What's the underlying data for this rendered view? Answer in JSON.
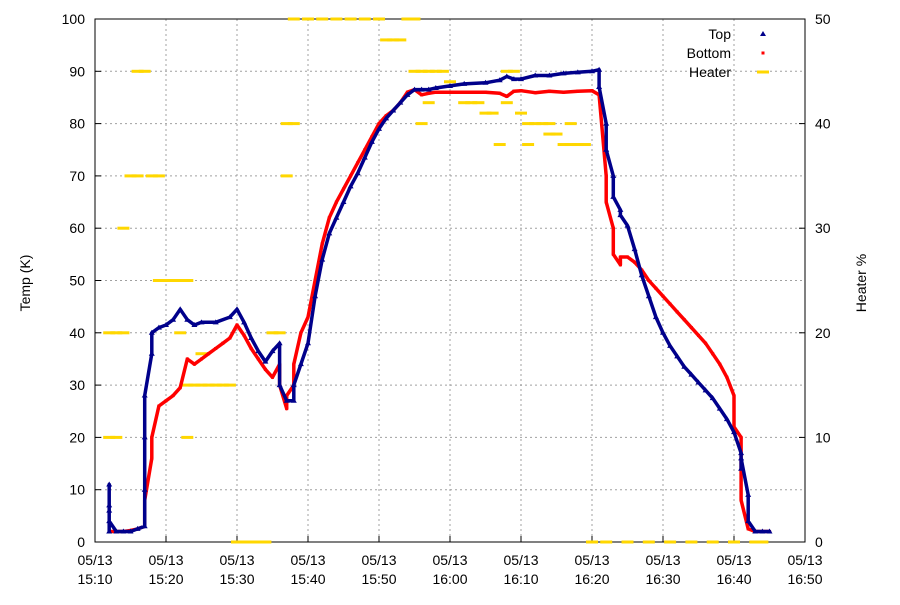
{
  "chart_data": {
    "type": "scatter",
    "xlabel": "",
    "ylabel": "Temp (K)",
    "y2label": "Heater %",
    "xlim": [
      "15:10",
      "16:50"
    ],
    "ylim": [
      0,
      100
    ],
    "y2lim": [
      0,
      50
    ],
    "x_ticks": [
      {
        "time": "15:10",
        "date": "05/13"
      },
      {
        "time": "15:20",
        "date": "05/13"
      },
      {
        "time": "15:30",
        "date": "05/13"
      },
      {
        "time": "15:40",
        "date": "05/13"
      },
      {
        "time": "15:50",
        "date": "05/13"
      },
      {
        "time": "16:00",
        "date": "05/13"
      },
      {
        "time": "16:10",
        "date": "05/13"
      },
      {
        "time": "16:20",
        "date": "05/13"
      },
      {
        "time": "16:30",
        "date": "05/13"
      },
      {
        "time": "16:40",
        "date": "05/13"
      },
      {
        "time": "16:50",
        "date": "05/13"
      }
    ],
    "y_ticks": [
      "0",
      "10",
      "20",
      "30",
      "40",
      "50",
      "60",
      "70",
      "80",
      "90",
      "100"
    ],
    "y2_ticks": [
      "0",
      "10",
      "20",
      "30",
      "40",
      "50"
    ],
    "grid": true,
    "legend_position": "top-right",
    "series": [
      {
        "name": "Top",
        "axis": "left",
        "color": "#00008b",
        "marker": "triangle",
        "points": [
          [
            "15:12",
            2
          ],
          [
            "15:12",
            6
          ],
          [
            "15:12",
            11
          ],
          [
            "15:12",
            7
          ],
          [
            "15:12",
            4
          ],
          [
            "15:13",
            2
          ],
          [
            "15:14",
            2
          ],
          [
            "15:15",
            2
          ],
          [
            "15:16",
            2.5
          ],
          [
            "15:17",
            3
          ],
          [
            "15:17",
            10
          ],
          [
            "15:17",
            20
          ],
          [
            "15:17",
            28
          ],
          [
            "15:18",
            36
          ],
          [
            "15:18",
            40
          ],
          [
            "15:19",
            41
          ],
          [
            "15:20",
            41.5
          ],
          [
            "15:21",
            42.5
          ],
          [
            "15:22",
            44.5
          ],
          [
            "15:23",
            42.5
          ],
          [
            "15:24",
            41.5
          ],
          [
            "15:25",
            42
          ],
          [
            "15:27",
            42
          ],
          [
            "15:29",
            43
          ],
          [
            "15:30",
            44.5
          ],
          [
            "15:31",
            42
          ],
          [
            "15:32",
            39
          ],
          [
            "15:33",
            36.5
          ],
          [
            "15:34",
            34.5
          ],
          [
            "15:35",
            36.5
          ],
          [
            "15:36",
            38
          ],
          [
            "15:36",
            30
          ],
          [
            "15:37",
            27
          ],
          [
            "15:38",
            27
          ],
          [
            "15:38",
            30
          ],
          [
            "15:39",
            34
          ],
          [
            "15:40",
            38
          ],
          [
            "15:41",
            47
          ],
          [
            "15:42",
            54
          ],
          [
            "15:43",
            59
          ],
          [
            "15:44",
            62
          ],
          [
            "15:45",
            65
          ],
          [
            "15:46",
            68
          ],
          [
            "15:47",
            70.5
          ],
          [
            "15:48",
            73.5
          ],
          [
            "15:49",
            76.5
          ],
          [
            "15:50",
            79
          ],
          [
            "15:51",
            81
          ],
          [
            "15:52",
            82.5
          ],
          [
            "15:53",
            84
          ],
          [
            "15:54",
            85.5
          ],
          [
            "15:55",
            86.5
          ],
          [
            "15:56",
            86.5
          ],
          [
            "15:57",
            86.5
          ],
          [
            "15:58",
            86.8
          ],
          [
            "16:00",
            87.2
          ],
          [
            "16:02",
            87.6
          ],
          [
            "16:05",
            87.8
          ],
          [
            "16:07",
            88.3
          ],
          [
            "16:08",
            89
          ],
          [
            "16:09",
            88.5
          ],
          [
            "16:10",
            88.5
          ],
          [
            "16:12",
            89.2
          ],
          [
            "16:14",
            89.2
          ],
          [
            "16:16",
            89.6
          ],
          [
            "16:18",
            89.8
          ],
          [
            "16:20",
            90
          ],
          [
            "16:21",
            90.3
          ],
          [
            "16:21",
            87
          ],
          [
            "16:22",
            80
          ],
          [
            "16:22",
            75
          ],
          [
            "16:23",
            70
          ],
          [
            "16:23",
            66
          ],
          [
            "16:24",
            63.5
          ],
          [
            "16:24",
            62.5
          ],
          [
            "16:25",
            60.5
          ],
          [
            "16:26",
            56
          ],
          [
            "16:27",
            51
          ],
          [
            "16:28",
            47
          ],
          [
            "16:29",
            43
          ],
          [
            "16:30",
            40
          ],
          [
            "16:31",
            37.5
          ],
          [
            "16:32",
            35.5
          ],
          [
            "16:33",
            33.5
          ],
          [
            "16:34",
            32
          ],
          [
            "16:35",
            30.5
          ],
          [
            "16:36",
            29
          ],
          [
            "16:37",
            27.5
          ],
          [
            "16:38",
            25.5
          ],
          [
            "16:39",
            23.5
          ],
          [
            "16:40",
            21
          ],
          [
            "16:41",
            17
          ],
          [
            "16:41",
            14
          ],
          [
            "16:41",
            16
          ],
          [
            "16:42",
            9
          ],
          [
            "16:42",
            4
          ],
          [
            "16:43",
            2
          ],
          [
            "16:44",
            2
          ],
          [
            "16:45",
            2
          ]
        ]
      },
      {
        "name": "Bottom",
        "axis": "left",
        "color": "#ff0000",
        "marker": "dot",
        "points": [
          [
            "15:12",
            2
          ],
          [
            "15:13",
            2
          ],
          [
            "15:14",
            2
          ],
          [
            "15:15",
            2.2
          ],
          [
            "15:16",
            2.5
          ],
          [
            "15:17",
            3
          ],
          [
            "15:17",
            8
          ],
          [
            "15:18",
            16
          ],
          [
            "15:18",
            20
          ],
          [
            "15:19",
            26
          ],
          [
            "15:20",
            27
          ],
          [
            "15:21",
            28
          ],
          [
            "15:22",
            29.5
          ],
          [
            "15:23",
            35
          ],
          [
            "15:24",
            34
          ],
          [
            "15:25",
            35
          ],
          [
            "15:26",
            36
          ],
          [
            "15:27",
            37
          ],
          [
            "15:28",
            38
          ],
          [
            "15:29",
            39
          ],
          [
            "15:30",
            41.5
          ],
          [
            "15:31",
            39.5
          ],
          [
            "15:32",
            37
          ],
          [
            "15:33",
            35
          ],
          [
            "15:34",
            33
          ],
          [
            "15:35",
            31.5
          ],
          [
            "15:36",
            34
          ],
          [
            "15:36",
            30
          ],
          [
            "15:37",
            25.5
          ],
          [
            "15:37",
            28
          ],
          [
            "15:38",
            30
          ],
          [
            "15:38",
            34
          ],
          [
            "15:39",
            40
          ],
          [
            "15:40",
            43
          ],
          [
            "15:41",
            50
          ],
          [
            "15:42",
            57
          ],
          [
            "15:43",
            62
          ],
          [
            "15:44",
            65
          ],
          [
            "15:45",
            67.5
          ],
          [
            "15:46",
            70
          ],
          [
            "15:47",
            72.5
          ],
          [
            "15:48",
            75
          ],
          [
            "15:49",
            77.5
          ],
          [
            "15:50",
            80
          ],
          [
            "15:51",
            81.5
          ],
          [
            "15:52",
            82.5
          ],
          [
            "15:53",
            84
          ],
          [
            "15:54",
            86
          ],
          [
            "15:55",
            86.5
          ],
          [
            "15:56",
            85.5
          ],
          [
            "15:57",
            85.8
          ],
          [
            "15:58",
            86
          ],
          [
            "16:00",
            86
          ],
          [
            "16:02",
            86
          ],
          [
            "16:05",
            86
          ],
          [
            "16:07",
            85.8
          ],
          [
            "16:08",
            85.2
          ],
          [
            "16:09",
            86.2
          ],
          [
            "16:10",
            86.3
          ],
          [
            "16:12",
            85.9
          ],
          [
            "16:14",
            86.2
          ],
          [
            "16:16",
            86
          ],
          [
            "16:18",
            86.2
          ],
          [
            "16:20",
            86.3
          ],
          [
            "16:21",
            85.5
          ],
          [
            "16:22",
            70
          ],
          [
            "16:22",
            65
          ],
          [
            "16:23",
            60
          ],
          [
            "16:23",
            55
          ],
          [
            "16:24",
            53
          ],
          [
            "16:24",
            54.5
          ],
          [
            "16:25",
            54.5
          ],
          [
            "16:26",
            53.5
          ],
          [
            "16:27",
            52
          ],
          [
            "16:28",
            50
          ],
          [
            "16:29",
            48.5
          ],
          [
            "16:30",
            47
          ],
          [
            "16:31",
            45.5
          ],
          [
            "16:32",
            44
          ],
          [
            "16:33",
            42.5
          ],
          [
            "16:34",
            41
          ],
          [
            "16:35",
            39.5
          ],
          [
            "16:36",
            38
          ],
          [
            "16:37",
            36
          ],
          [
            "16:38",
            34
          ],
          [
            "16:39",
            31.5
          ],
          [
            "16:40",
            28
          ],
          [
            "16:40",
            22
          ],
          [
            "16:41",
            20
          ],
          [
            "16:41",
            8
          ],
          [
            "16:42",
            2.5
          ],
          [
            "16:43",
            2
          ],
          [
            "16:44",
            2
          ],
          [
            "16:45",
            2
          ]
        ]
      },
      {
        "name": "Heater",
        "axis": "right",
        "color": "#ffd700",
        "marker": "dash",
        "points": [
          [
            "15:12",
            20
          ],
          [
            "15:12",
            10
          ],
          [
            "15:13",
            10
          ],
          [
            "15:13",
            20
          ],
          [
            "15:14",
            20
          ],
          [
            "15:14",
            30
          ],
          [
            "15:15",
            35
          ],
          [
            "15:16",
            35
          ],
          [
            "15:16",
            45
          ],
          [
            "15:17",
            45
          ],
          [
            "15:18",
            35
          ],
          [
            "15:19",
            35
          ],
          [
            "15:19",
            25
          ],
          [
            "15:20",
            25
          ],
          [
            "15:21",
            25
          ],
          [
            "15:22",
            25
          ],
          [
            "15:23",
            25
          ],
          [
            "15:22",
            20
          ],
          [
            "15:23",
            10
          ],
          [
            "15:23",
            15
          ],
          [
            "15:24",
            15
          ],
          [
            "15:25",
            18
          ],
          [
            "15:25",
            15
          ],
          [
            "15:26",
            15
          ],
          [
            "15:27",
            15
          ],
          [
            "15:28",
            15
          ],
          [
            "15:29",
            15
          ],
          [
            "15:30",
            0
          ],
          [
            "15:31",
            0
          ],
          [
            "15:32",
            0
          ],
          [
            "15:33",
            0
          ],
          [
            "15:34",
            0
          ],
          [
            "15:35",
            20
          ],
          [
            "15:36",
            20
          ],
          [
            "15:37",
            35
          ],
          [
            "15:37",
            40
          ],
          [
            "15:38",
            40
          ],
          [
            "15:38",
            50
          ],
          [
            "15:40",
            50
          ],
          [
            "15:42",
            50
          ],
          [
            "15:44",
            50
          ],
          [
            "15:46",
            50
          ],
          [
            "15:48",
            50
          ],
          [
            "15:50",
            50
          ],
          [
            "15:51",
            48
          ],
          [
            "15:52",
            48
          ],
          [
            "15:53",
            48
          ],
          [
            "15:54",
            50
          ],
          [
            "15:55",
            50
          ],
          [
            "15:55",
            45
          ],
          [
            "15:56",
            45
          ],
          [
            "15:56",
            40
          ],
          [
            "15:57",
            42
          ],
          [
            "15:57",
            45
          ],
          [
            "15:58",
            45
          ],
          [
            "15:59",
            45
          ],
          [
            "16:00",
            44
          ],
          [
            "16:00",
            43
          ],
          [
            "16:01",
            43
          ],
          [
            "16:02",
            43
          ],
          [
            "16:02",
            42
          ],
          [
            "16:03",
            42
          ],
          [
            "16:04",
            42
          ],
          [
            "16:05",
            41
          ],
          [
            "16:06",
            41
          ],
          [
            "16:07",
            38
          ],
          [
            "16:08",
            42
          ],
          [
            "16:08",
            45
          ],
          [
            "16:09",
            45
          ],
          [
            "16:10",
            41
          ],
          [
            "16:11",
            38
          ],
          [
            "16:11",
            40
          ],
          [
            "16:12",
            40
          ],
          [
            "16:13",
            40
          ],
          [
            "16:14",
            40
          ],
          [
            "16:14",
            39
          ],
          [
            "16:15",
            39
          ],
          [
            "16:16",
            38
          ],
          [
            "16:17",
            40
          ],
          [
            "16:17",
            38
          ],
          [
            "16:18",
            38
          ],
          [
            "16:19",
            38
          ],
          [
            "16:20",
            0
          ],
          [
            "16:22",
            0
          ],
          [
            "16:25",
            0
          ],
          [
            "16:28",
            0
          ],
          [
            "16:31",
            0
          ],
          [
            "16:34",
            0
          ],
          [
            "16:37",
            0
          ],
          [
            "16:40",
            0
          ],
          [
            "16:43",
            0
          ],
          [
            "16:44",
            0
          ]
        ]
      }
    ]
  }
}
